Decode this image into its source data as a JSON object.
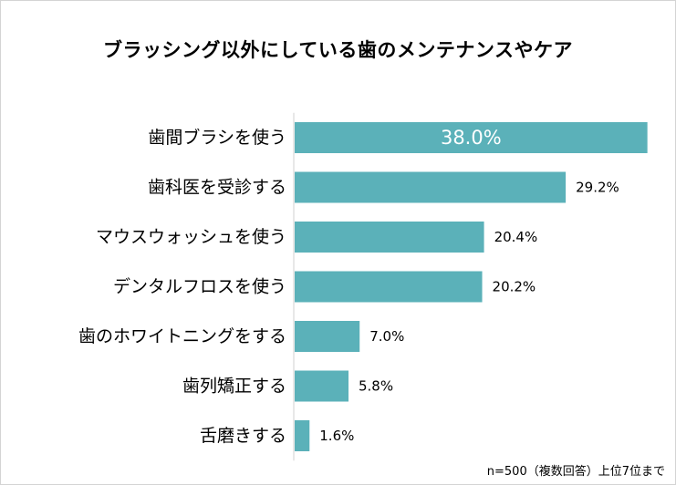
{
  "title": "ブラッシング以外にしている歯のメンテナンスやケア",
  "note": "n=500（複数回答）上位7位まで",
  "colors": {
    "bar": "#5bb1b9",
    "axis": "#d0d0d0",
    "label": "#000000",
    "highlight_label": "#ffffff"
  },
  "chart_data": {
    "type": "bar",
    "orientation": "horizontal",
    "title": "ブラッシング以外にしている歯のメンテナンスやケア",
    "categories": [
      "歯間ブラシを使う",
      "歯科医を受診する",
      "マウスウォッシュを使う",
      "デンタルフロスを使う",
      "歯のホワイトニングをする",
      "歯列矯正する",
      "舌磨きする"
    ],
    "values": [
      38.0,
      29.2,
      20.4,
      20.2,
      7.0,
      5.8,
      1.6
    ],
    "value_labels": [
      "38.0%",
      "29.2%",
      "20.4%",
      "20.2%",
      "7.0%",
      "5.8%",
      "1.6%"
    ],
    "unit": "%",
    "xlim": [
      0,
      40
    ],
    "grid": false,
    "legend": "none"
  }
}
